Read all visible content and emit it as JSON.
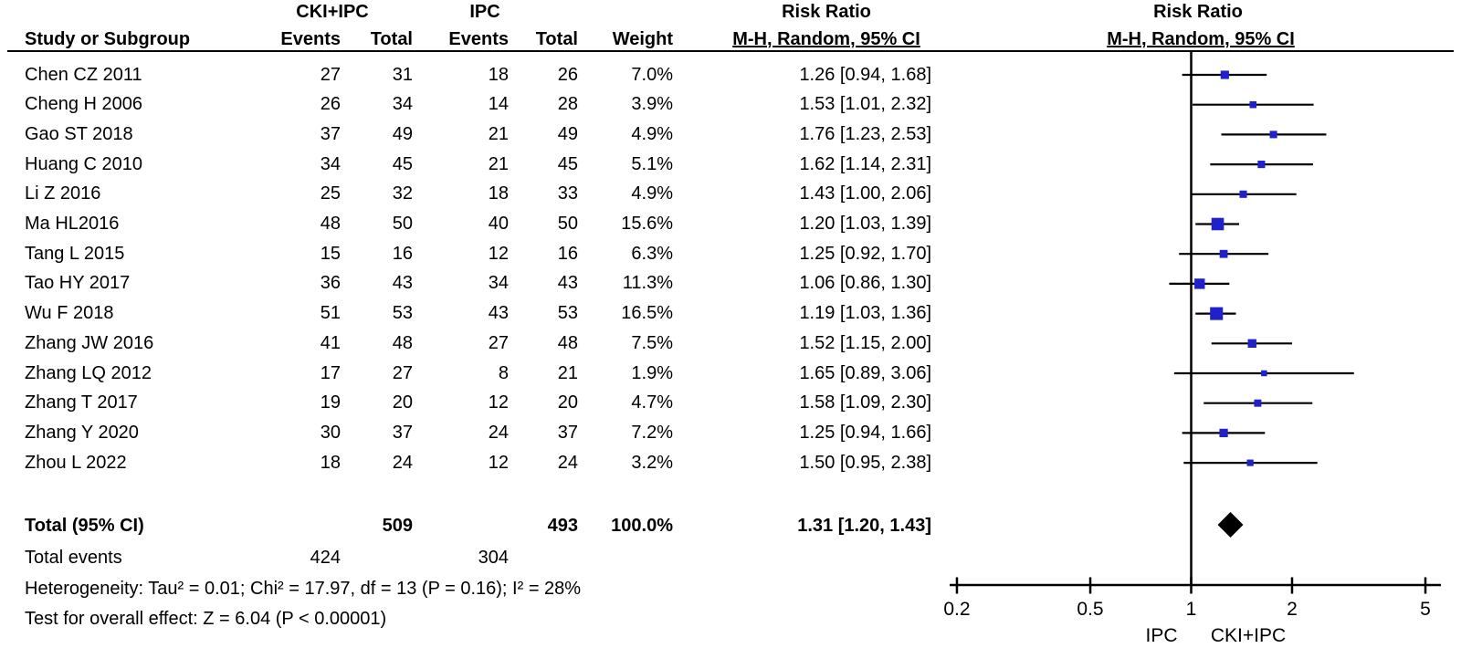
{
  "header": {
    "group1_label": "CKI+IPC",
    "group2_label": "IPC",
    "study_col": "Study or Subgroup",
    "events_col": "Events",
    "total_col": "Total",
    "weight_col": "Weight",
    "rr_title": "Risk Ratio",
    "rr_subtitle": "M-H, Random, 95% CI",
    "plot_title": "Risk Ratio",
    "plot_subtitle": "M-H, Random, 95% CI"
  },
  "studies": [
    {
      "name": "Chen CZ 2011",
      "events1": "27",
      "total1": "31",
      "events2": "18",
      "total2": "26",
      "weight": "7.0%",
      "rr_label": "1.26 [0.94, 1.68]",
      "rr": 1.26,
      "lo": 0.94,
      "hi": 1.68,
      "weight_pct": 7.0
    },
    {
      "name": "Cheng H 2006",
      "events1": "26",
      "total1": "34",
      "events2": "14",
      "total2": "28",
      "weight": "3.9%",
      "rr_label": "1.53 [1.01, 2.32]",
      "rr": 1.53,
      "lo": 1.01,
      "hi": 2.32,
      "weight_pct": 3.9
    },
    {
      "name": "Gao ST 2018",
      "events1": "37",
      "total1": "49",
      "events2": "21",
      "total2": "49",
      "weight": "4.9%",
      "rr_label": "1.76 [1.23, 2.53]",
      "rr": 1.76,
      "lo": 1.23,
      "hi": 2.53,
      "weight_pct": 4.9
    },
    {
      "name": "Huang C 2010",
      "events1": "34",
      "total1": "45",
      "events2": "21",
      "total2": "45",
      "weight": "5.1%",
      "rr_label": "1.62 [1.14, 2.31]",
      "rr": 1.62,
      "lo": 1.14,
      "hi": 2.31,
      "weight_pct": 5.1
    },
    {
      "name": "Li Z 2016",
      "events1": "25",
      "total1": "32",
      "events2": "18",
      "total2": "33",
      "weight": "4.9%",
      "rr_label": "1.43 [1.00, 2.06]",
      "rr": 1.43,
      "lo": 1.0,
      "hi": 2.06,
      "weight_pct": 4.9
    },
    {
      "name": "Ma HL2016",
      "events1": "48",
      "total1": "50",
      "events2": "40",
      "total2": "50",
      "weight": "15.6%",
      "rr_label": "1.20 [1.03, 1.39]",
      "rr": 1.2,
      "lo": 1.03,
      "hi": 1.39,
      "weight_pct": 15.6
    },
    {
      "name": "Tang L 2015",
      "events1": "15",
      "total1": "16",
      "events2": "12",
      "total2": "16",
      "weight": "6.3%",
      "rr_label": "1.25 [0.92, 1.70]",
      "rr": 1.25,
      "lo": 0.92,
      "hi": 1.7,
      "weight_pct": 6.3
    },
    {
      "name": "Tao HY 2017",
      "events1": "36",
      "total1": "43",
      "events2": "34",
      "total2": "43",
      "weight": "11.3%",
      "rr_label": "1.06 [0.86, 1.30]",
      "rr": 1.06,
      "lo": 0.86,
      "hi": 1.3,
      "weight_pct": 11.3
    },
    {
      "name": "Wu F 2018",
      "events1": "51",
      "total1": "53",
      "events2": "43",
      "total2": "53",
      "weight": "16.5%",
      "rr_label": "1.19 [1.03, 1.36]",
      "rr": 1.19,
      "lo": 1.03,
      "hi": 1.36,
      "weight_pct": 16.5
    },
    {
      "name": "Zhang JW 2016",
      "events1": "41",
      "total1": "48",
      "events2": "27",
      "total2": "48",
      "weight": "7.5%",
      "rr_label": "1.52 [1.15, 2.00]",
      "rr": 1.52,
      "lo": 1.15,
      "hi": 2.0,
      "weight_pct": 7.5
    },
    {
      "name": "Zhang LQ 2012",
      "events1": "17",
      "total1": "27",
      "events2": "8",
      "total2": "21",
      "weight": "1.9%",
      "rr_label": "1.65 [0.89, 3.06]",
      "rr": 1.65,
      "lo": 0.89,
      "hi": 3.06,
      "weight_pct": 1.9
    },
    {
      "name": "Zhang T 2017",
      "events1": "19",
      "total1": "20",
      "events2": "12",
      "total2": "20",
      "weight": "4.7%",
      "rr_label": "1.58 [1.09, 2.30]",
      "rr": 1.58,
      "lo": 1.09,
      "hi": 2.3,
      "weight_pct": 4.7
    },
    {
      "name": "Zhang Y 2020",
      "events1": "30",
      "total1": "37",
      "events2": "24",
      "total2": "37",
      "weight": "7.2%",
      "rr_label": "1.25 [0.94, 1.66]",
      "rr": 1.25,
      "lo": 0.94,
      "hi": 1.66,
      "weight_pct": 7.2
    },
    {
      "name": "Zhou L 2022",
      "events1": "18",
      "total1": "24",
      "events2": "12",
      "total2": "24",
      "weight": "3.2%",
      "rr_label": "1.50 [0.95, 2.38]",
      "rr": 1.5,
      "lo": 0.95,
      "hi": 2.38,
      "weight_pct": 3.2
    }
  ],
  "totals": {
    "label": "Total (95% CI)",
    "total1": "509",
    "total2": "493",
    "weight": "100.0%",
    "rr_label": "1.31 [1.20, 1.43]",
    "rr": 1.31,
    "lo": 1.2,
    "hi": 1.43
  },
  "total_events": {
    "label": "Total events",
    "events1": "424",
    "events2": "304"
  },
  "heterogeneity": "Heterogeneity: Tau² = 0.01; Chi² = 17.97, df = 13 (P = 0.16); I² = 28%",
  "overall_effect": "Test for overall effect: Z = 6.04 (P < 0.00001)",
  "colors": {
    "marker": "#2121cc",
    "diamond": "#000000",
    "line": "#000000"
  },
  "chart_data": {
    "type": "scatter",
    "subtype": "forest-plot",
    "title": "Risk Ratio",
    "subtitle": "M-H, Random, 95% CI",
    "x_scale": "log",
    "xlim": [
      0.2,
      5
    ],
    "x_ticks": [
      "0.2",
      "0.5",
      "1",
      "2",
      "5"
    ],
    "x_tick_values": [
      0.2,
      0.5,
      1,
      2,
      5
    ],
    "axis_left_label": "IPC",
    "axis_right_label": "CKI+IPC",
    "grid": false,
    "legend": "none",
    "series": [
      {
        "name": "Chen CZ 2011",
        "rr": 1.26,
        "ci": [
          0.94,
          1.68
        ],
        "weight_pct": 7.0
      },
      {
        "name": "Cheng H 2006",
        "rr": 1.53,
        "ci": [
          1.01,
          2.32
        ],
        "weight_pct": 3.9
      },
      {
        "name": "Gao ST 2018",
        "rr": 1.76,
        "ci": [
          1.23,
          2.53
        ],
        "weight_pct": 4.9
      },
      {
        "name": "Huang C 2010",
        "rr": 1.62,
        "ci": [
          1.14,
          2.31
        ],
        "weight_pct": 5.1
      },
      {
        "name": "Li Z 2016",
        "rr": 1.43,
        "ci": [
          1.0,
          2.06
        ],
        "weight_pct": 4.9
      },
      {
        "name": "Ma HL2016",
        "rr": 1.2,
        "ci": [
          1.03,
          1.39
        ],
        "weight_pct": 15.6
      },
      {
        "name": "Tang L 2015",
        "rr": 1.25,
        "ci": [
          0.92,
          1.7
        ],
        "weight_pct": 6.3
      },
      {
        "name": "Tao HY 2017",
        "rr": 1.06,
        "ci": [
          0.86,
          1.3
        ],
        "weight_pct": 11.3
      },
      {
        "name": "Wu F 2018",
        "rr": 1.19,
        "ci": [
          1.03,
          1.36
        ],
        "weight_pct": 16.5
      },
      {
        "name": "Zhang JW 2016",
        "rr": 1.52,
        "ci": [
          1.15,
          2.0
        ],
        "weight_pct": 7.5
      },
      {
        "name": "Zhang LQ 2012",
        "rr": 1.65,
        "ci": [
          0.89,
          3.06
        ],
        "weight_pct": 1.9
      },
      {
        "name": "Zhang T 2017",
        "rr": 1.58,
        "ci": [
          1.09,
          2.3
        ],
        "weight_pct": 4.7
      },
      {
        "name": "Zhang Y 2020",
        "rr": 1.25,
        "ci": [
          0.94,
          1.66
        ],
        "weight_pct": 7.2
      },
      {
        "name": "Zhou L 2022",
        "rr": 1.5,
        "ci": [
          0.95,
          2.38
        ],
        "weight_pct": 3.2
      }
    ],
    "summary": {
      "label": "Total (95% CI)",
      "rr": 1.31,
      "ci": [
        1.2,
        1.43
      ],
      "weight_pct": 100.0
    }
  }
}
